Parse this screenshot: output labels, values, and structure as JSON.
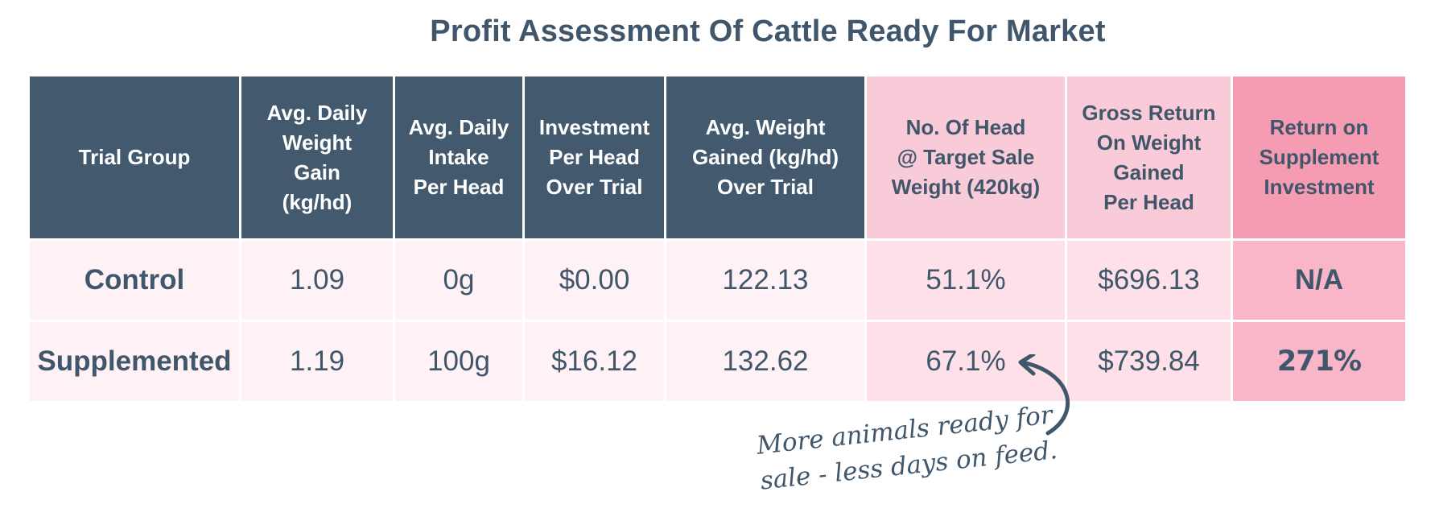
{
  "title": "Profit Assessment Of Cattle Ready For Market",
  "table": {
    "headers": [
      {
        "lines": [
          "Trial Group"
        ]
      },
      {
        "lines": [
          "Avg. Daily",
          "Weight",
          "Gain",
          "(kg/hd)"
        ]
      },
      {
        "lines": [
          "Avg. Daily",
          "Intake",
          "Per Head"
        ]
      },
      {
        "lines": [
          "Investment",
          "Per Head",
          "Over Trial"
        ]
      },
      {
        "lines": [
          "Avg. Weight",
          "Gained (kg/hd)",
          "Over Trial"
        ]
      },
      {
        "lines": [
          "No. Of Head",
          "@ Target Sale",
          "Weight (420kg)"
        ]
      },
      {
        "lines": [
          "Gross Return",
          "On Weight",
          "Gained",
          "Per Head"
        ]
      },
      {
        "lines": [
          "Return on",
          "Supplement",
          "Investment"
        ]
      }
    ],
    "rows": [
      {
        "group": "Control",
        "avg_daily_weight_gain": "1.09",
        "avg_daily_intake": "0g",
        "investment_per_head": "$0.00",
        "avg_weight_gained": "122.13",
        "head_at_target_weight": "51.1%",
        "gross_return": "$696.13",
        "return_on_investment": "N/A"
      },
      {
        "group": "Supplemented",
        "avg_daily_weight_gain": "1.19",
        "avg_daily_intake": "100g",
        "investment_per_head": "$16.12",
        "avg_weight_gained": "132.62",
        "head_at_target_weight": "67.1%",
        "gross_return": "$739.84",
        "return_on_investment": "271%"
      }
    ]
  },
  "annotation": {
    "lines": [
      "More animals ready for",
      "sale - less days on feed."
    ]
  },
  "colors": {
    "header_dark": "#42596e",
    "header_pink": "#f9cad7",
    "header_hot_pink": "#f59bb2",
    "text": "#40566b"
  }
}
